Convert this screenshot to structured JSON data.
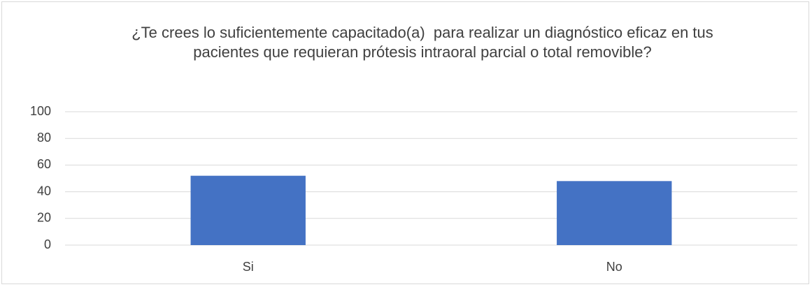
{
  "chart_data": {
    "type": "bar",
    "title": "¿Te crees lo suficientemente capacitado(a)  para realizar un diagnóstico eficaz en tus pacientes que requieran prótesis intraoral parcial o total removible?",
    "categories": [
      "Si",
      "No"
    ],
    "values": [
      52,
      48
    ],
    "color": "#4472c4",
    "ylim": [
      0,
      100
    ],
    "yticks": [
      0,
      20,
      40,
      60,
      80,
      100
    ],
    "grid": true
  }
}
